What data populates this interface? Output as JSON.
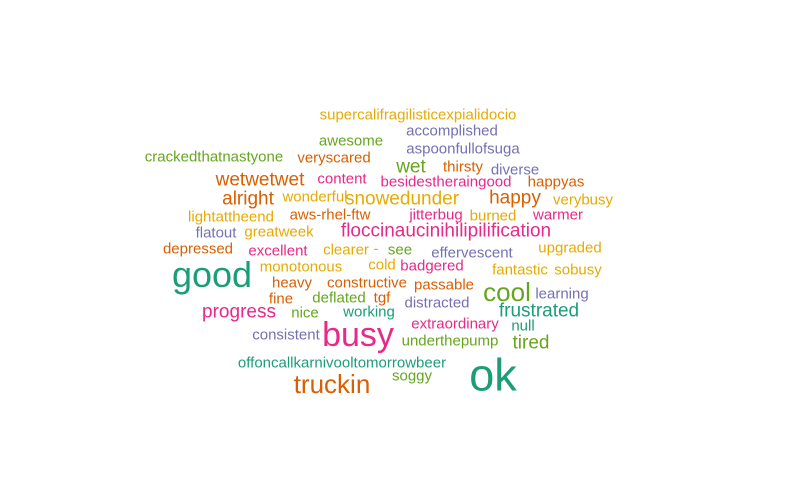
{
  "palette": {
    "teal": "#1b9e77",
    "orange": "#d95f02",
    "purple": "#7570b3",
    "magenta": "#e7298a",
    "green": "#66a61e",
    "gold": "#e6ab02"
  },
  "words": [
    {
      "text": "supercalifragilisticexpialidocio",
      "color": "gold"
    },
    {
      "text": "accomplished",
      "color": "purple"
    },
    {
      "text": "awesome",
      "color": "green"
    },
    {
      "text": "aspoonfullofsuga",
      "color": "purple"
    },
    {
      "text": "crackedthatnastyone",
      "color": "green"
    },
    {
      "text": "veryscared",
      "color": "orange"
    },
    {
      "text": "wet",
      "color": "green"
    },
    {
      "text": "thirsty",
      "color": "orange"
    },
    {
      "text": "diverse",
      "color": "purple"
    },
    {
      "text": "wetwetwet",
      "color": "orange"
    },
    {
      "text": "content",
      "color": "magenta"
    },
    {
      "text": "besidestheraingood",
      "color": "magenta"
    },
    {
      "text": "happyas",
      "color": "orange"
    },
    {
      "text": "alright",
      "color": "orange"
    },
    {
      "text": "wonderful",
      "color": "gold"
    },
    {
      "text": "snowedunder",
      "color": "gold"
    },
    {
      "text": "happy",
      "color": "orange"
    },
    {
      "text": "verybusy",
      "color": "gold"
    },
    {
      "text": "lightattheend",
      "color": "gold"
    },
    {
      "text": "aws-rhel-ftw",
      "color": "orange"
    },
    {
      "text": "jitterbug",
      "color": "magenta"
    },
    {
      "text": "burned",
      "color": "gold"
    },
    {
      "text": "warmer",
      "color": "magenta"
    },
    {
      "text": "flatout",
      "color": "purple"
    },
    {
      "text": "greatweek",
      "color": "gold"
    },
    {
      "text": "floccinaucinihilipilification",
      "color": "magenta"
    },
    {
      "text": "depressed",
      "color": "orange"
    },
    {
      "text": "excellent",
      "color": "magenta"
    },
    {
      "text": "clearer",
      "color": "gold"
    },
    {
      "text": "-",
      "color": "gold"
    },
    {
      "text": "see",
      "color": "green"
    },
    {
      "text": "effervescent",
      "color": "purple"
    },
    {
      "text": "upgraded",
      "color": "gold"
    },
    {
      "text": "good",
      "color": "teal"
    },
    {
      "text": "monotonous",
      "color": "gold"
    },
    {
      "text": "cold",
      "color": "gold"
    },
    {
      "text": "badgered",
      "color": "magenta"
    },
    {
      "text": "fantastic",
      "color": "gold"
    },
    {
      "text": "sobusy",
      "color": "gold"
    },
    {
      "text": "heavy",
      "color": "orange"
    },
    {
      "text": "constructive",
      "color": "orange"
    },
    {
      "text": "passable",
      "color": "orange"
    },
    {
      "text": "cool",
      "color": "green"
    },
    {
      "text": "learning",
      "color": "purple"
    },
    {
      "text": "fine",
      "color": "orange"
    },
    {
      "text": "deflated",
      "color": "green"
    },
    {
      "text": "tgf",
      "color": "orange"
    },
    {
      "text": "distracted",
      "color": "purple"
    },
    {
      "text": "progress",
      "color": "magenta"
    },
    {
      "text": "nice",
      "color": "green"
    },
    {
      "text": "working",
      "color": "teal"
    },
    {
      "text": "frustrated",
      "color": "teal"
    },
    {
      "text": "extraordinary",
      "color": "magenta"
    },
    {
      "text": "null",
      "color": "teal"
    },
    {
      "text": "consistent",
      "color": "purple"
    },
    {
      "text": "busy",
      "color": "magenta"
    },
    {
      "text": "underthepump",
      "color": "green"
    },
    {
      "text": "tired",
      "color": "green"
    },
    {
      "text": "offoncallkarnivooltomorrowbeer",
      "color": "teal"
    },
    {
      "text": "ok",
      "color": "teal"
    },
    {
      "text": "soggy",
      "color": "green"
    },
    {
      "text": "truckin",
      "color": "orange"
    }
  ]
}
